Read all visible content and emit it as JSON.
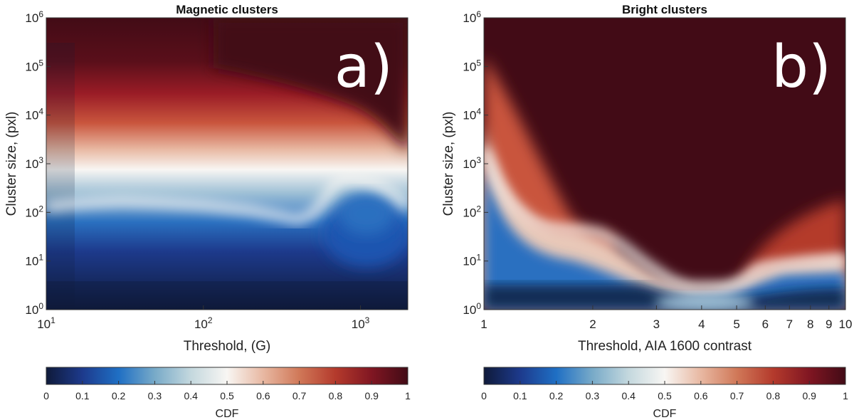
{
  "chart_data": [
    {
      "type": "heatmap",
      "panel_label": "a)",
      "title": "Magnetic clusters",
      "xlabel": "Threshold, (G)",
      "ylabel": "Cluster size, (pxl)",
      "xscale": "log",
      "yscale": "log",
      "xlim": [
        10,
        2000
      ],
      "ylim": [
        1,
        1000000
      ],
      "x_ticks": [
        {
          "base": "10",
          "exp": "1",
          "value": 10
        },
        {
          "base": "10",
          "exp": "2",
          "value": 100
        },
        {
          "base": "10",
          "exp": "3",
          "value": 1000
        }
      ],
      "y_ticks": [
        {
          "base": "10",
          "exp": "0",
          "value": 1
        },
        {
          "base": "10",
          "exp": "1",
          "value": 10
        },
        {
          "base": "10",
          "exp": "2",
          "value": 100
        },
        {
          "base": "10",
          "exp": "3",
          "value": 1000
        },
        {
          "base": "10",
          "exp": "4",
          "value": 10000
        },
        {
          "base": "10",
          "exp": "5",
          "value": 100000
        },
        {
          "base": "10",
          "exp": "6",
          "value": 1000000
        }
      ],
      "median_curve": {
        "x": [
          10,
          15,
          20,
          30,
          50,
          100,
          200,
          300,
          400,
          500,
          600,
          700,
          800,
          1000,
          1300,
          1600,
          2000
        ],
        "y": [
          130,
          150,
          160,
          170,
          160,
          140,
          110,
          85,
          70,
          95,
          200,
          420,
          500,
          480,
          380,
          250,
          130
        ]
      },
      "colorbar": {
        "label": "CDF",
        "ticks": [
          "0",
          "0.1",
          "0.2",
          "0.3",
          "0.4",
          "0.5",
          "0.6",
          "0.7",
          "0.8",
          "0.9",
          "1"
        ],
        "range": [
          0,
          1
        ]
      }
    },
    {
      "type": "heatmap",
      "panel_label": "b)",
      "title": "Bright clusters",
      "xlabel": "Threshold, AIA 1600 contrast",
      "ylabel": "Cluster size, (pxl)",
      "xscale": "log",
      "yscale": "log",
      "xlim": [
        1,
        10
      ],
      "ylim": [
        1,
        1000000
      ],
      "x_ticks": [
        {
          "label": "1",
          "value": 1
        },
        {
          "label": "2",
          "value": 2
        },
        {
          "label": "3",
          "value": 3
        },
        {
          "label": "4",
          "value": 4
        },
        {
          "label": "5",
          "value": 5
        },
        {
          "label": "6",
          "value": 6
        },
        {
          "label": "7",
          "value": 7
        },
        {
          "label": "8",
          "value": 8
        },
        {
          "label": "9",
          "value": 9
        },
        {
          "label": "10",
          "value": 10
        }
      ],
      "y_ticks": [
        {
          "base": "10",
          "exp": "0",
          "value": 1
        },
        {
          "base": "10",
          "exp": "1",
          "value": 10
        },
        {
          "base": "10",
          "exp": "2",
          "value": 100
        },
        {
          "base": "10",
          "exp": "3",
          "value": 1000
        },
        {
          "base": "10",
          "exp": "4",
          "value": 10000
        },
        {
          "base": "10",
          "exp": "5",
          "value": 100000
        },
        {
          "base": "10",
          "exp": "6",
          "value": 1000000
        }
      ],
      "median_curve": {
        "x": [
          1,
          1.1,
          1.2,
          1.35,
          1.5,
          1.7,
          1.9,
          2.1,
          2.4,
          2.8,
          3.3,
          3.7,
          4.2,
          4.7,
          5.2,
          5.7,
          6.2,
          7,
          8,
          10
        ],
        "y": [
          2000,
          400,
          150,
          70,
          50,
          45,
          43,
          38,
          22,
          9,
          4,
          3,
          3,
          3,
          4,
          7,
          8,
          9,
          10,
          11
        ]
      },
      "colorbar": {
        "label": "CDF",
        "ticks": [
          "0",
          "0.1",
          "0.2",
          "0.3",
          "0.4",
          "0.5",
          "0.6",
          "0.7",
          "0.8",
          "0.9",
          "1"
        ],
        "range": [
          0,
          1
        ]
      }
    }
  ]
}
